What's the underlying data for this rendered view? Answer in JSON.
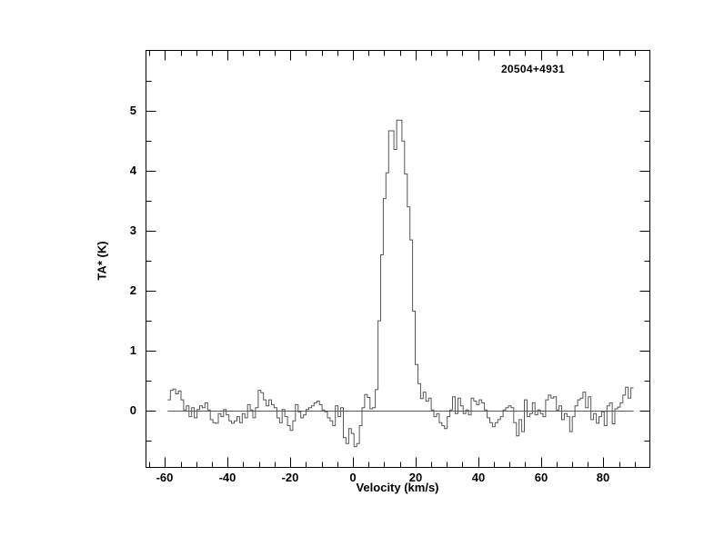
{
  "figure": {
    "source_label": "20504+4931",
    "xlabel": "Velocity (km/s)",
    "ylabel": "TA* (K)"
  },
  "chart_data": {
    "type": "line",
    "subtype": "histogram-step-spectrum",
    "title": "20504+4931",
    "xlabel": "Velocity (km/s)",
    "ylabel": "TA* (K)",
    "xlim": [
      -66.2,
      94.7
    ],
    "ylim": [
      -0.94,
      6.02
    ],
    "x_major_ticks": [
      -60,
      -40,
      -20,
      0,
      20,
      40,
      60,
      80
    ],
    "x_minor_tick_step": 5,
    "y_major_ticks": [
      0,
      1,
      2,
      3,
      4,
      5
    ],
    "y_minor_tick_step": 0.5,
    "grid": false,
    "legend": "none",
    "baseline_level": 0,
    "background_color": "#ffffff",
    "axis_color": "#000000",
    "line_color": "#555555",
    "x_start": -58.7,
    "x_step": 0.85,
    "values": [
      0.18,
      0.34,
      0.36,
      0.28,
      0.33,
      0.18,
      0.01,
      0.08,
      -0.1,
      0.05,
      -0.12,
      0.02,
      0.08,
      0.05,
      0.13,
      0.01,
      -0.15,
      -0.2,
      -0.21,
      -0.05,
      -0.1,
      0.02,
      -0.07,
      -0.17,
      -0.21,
      -0.17,
      -0.1,
      -0.2,
      -0.05,
      -0.12,
      0.1,
      0.01,
      -0.12,
      0.05,
      0.34,
      0.3,
      0.18,
      0.08,
      0.18,
      0.1,
      0.05,
      -0.12,
      -0.2,
      0.02,
      -0.1,
      -0.25,
      -0.33,
      -0.17,
      0.1,
      -0.02,
      -0.12,
      -0.07,
      0.02,
      0.05,
      0.08,
      0.13,
      0.16,
      0.1,
      0.01,
      -0.02,
      -0.12,
      -0.17,
      -0.25,
      0.08,
      -0.1,
      0.05,
      -0.45,
      -0.55,
      -0.3,
      -0.38,
      -0.6,
      -0.55,
      -0.25,
      0.05,
      0.27,
      0.22,
      0.03,
      0.05,
      0.35,
      1.5,
      2.6,
      3.54,
      3.97,
      4.67,
      4.67,
      4.36,
      4.85,
      4.85,
      4.5,
      3.95,
      3.4,
      2.85,
      1.66,
      0.77,
      0.45,
      0.2,
      0.31,
      0.16,
      0.21,
      0.01,
      -0.1,
      -0.05,
      -0.2,
      -0.25,
      -0.3,
      -0.1,
      0.01,
      0.23,
      -0.05,
      0.21,
      0.08,
      -0.05,
      0.01,
      -0.07,
      0.21,
      0.16,
      0.1,
      0.18,
      0.13,
      0.01,
      -0.12,
      -0.2,
      -0.27,
      -0.2,
      -0.15,
      -0.1,
      0.01,
      0.05,
      0.08,
      0.05,
      -0.2,
      -0.42,
      -0.15,
      -0.35,
      0.18,
      -0.1,
      -0.05,
      0.13,
      -0.07,
      0.01,
      -0.05,
      -0.1,
      0.18,
      0.26,
      0.21,
      0.23,
      0.01,
      0.08,
      -0.15,
      -0.05,
      -0.1,
      -0.35,
      -0.1,
      0.08,
      0.18,
      0.21,
      0.31,
      0.05,
      0.23,
      -0.15,
      -0.05,
      -0.21,
      -0.1,
      -0.02,
      -0.25,
      0.08,
      0.13,
      -0.22,
      0.03,
      0.06,
      0.13,
      0.26,
      0.39,
      0.21,
      0.38
    ]
  }
}
